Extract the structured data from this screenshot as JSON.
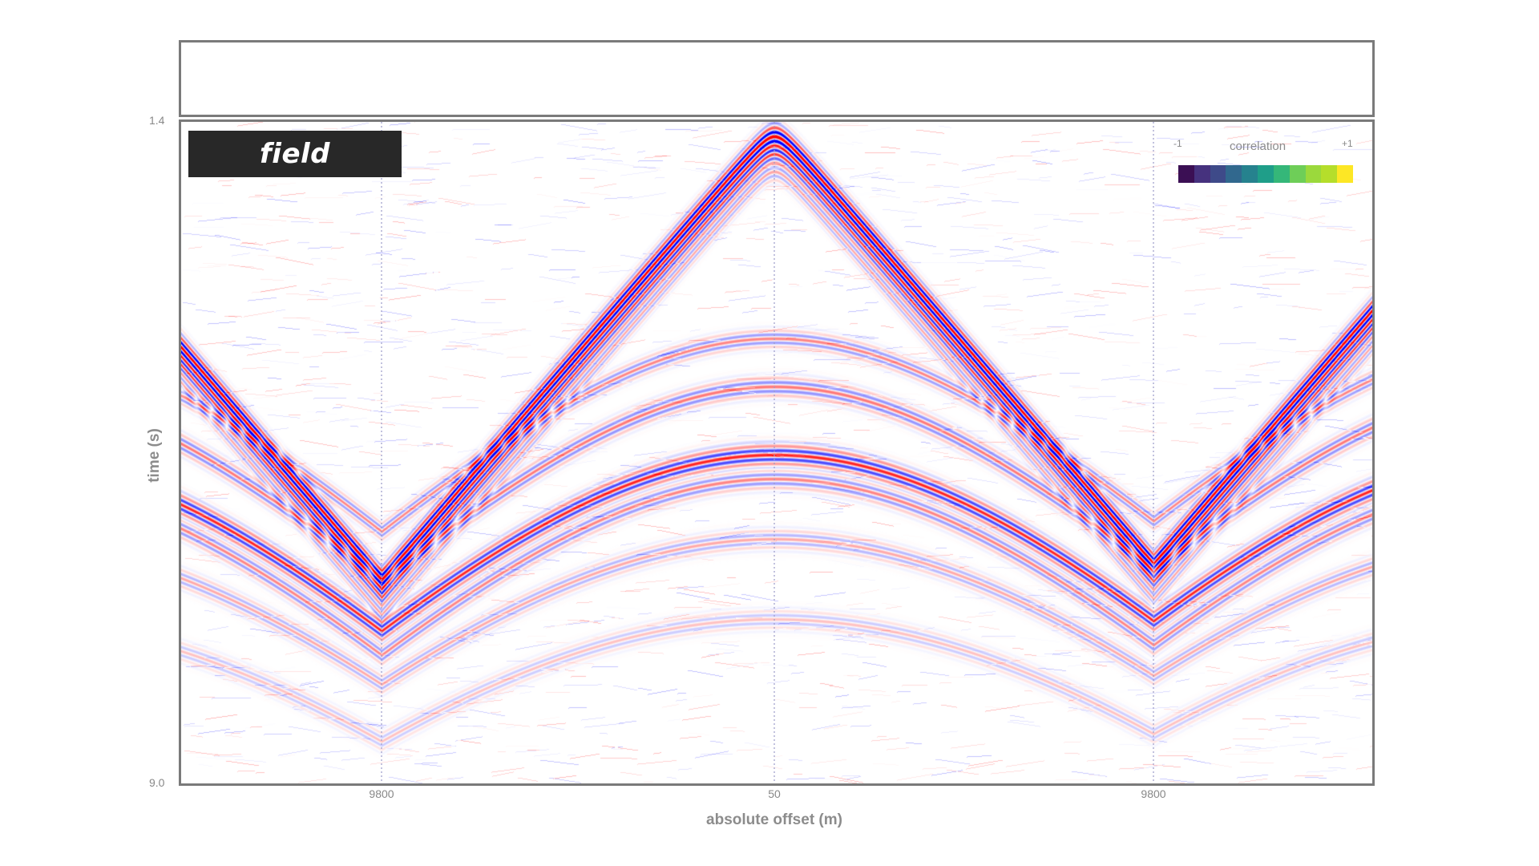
{
  "chart_data": {
    "type": "heatmap",
    "panel_label": "field",
    "xlabel": "absolute offset (m)",
    "ylabel": "time (s)",
    "x_ticks": [
      "9800",
      "50",
      "9800"
    ],
    "y_ticks": [
      "1.4",
      "9.0"
    ],
    "ylim": [
      1.4,
      9.0
    ],
    "colorbar": {
      "title": "correlation",
      "min_label": "-1",
      "max_label": "+1",
      "colors": [
        "#3b0f54",
        "#46327e",
        "#3e4a89",
        "#31688e",
        "#26828e",
        "#1f9e89",
        "#35b779",
        "#6ece58",
        "#9bd93c",
        "#b5de2b",
        "#fde725"
      ]
    },
    "wavefield_colors": {
      "positive": "#ff1a1a",
      "negative": "#1a1aff",
      "background": "#ffffff"
    },
    "grid": "dotted vertical lines at offset ticks"
  }
}
